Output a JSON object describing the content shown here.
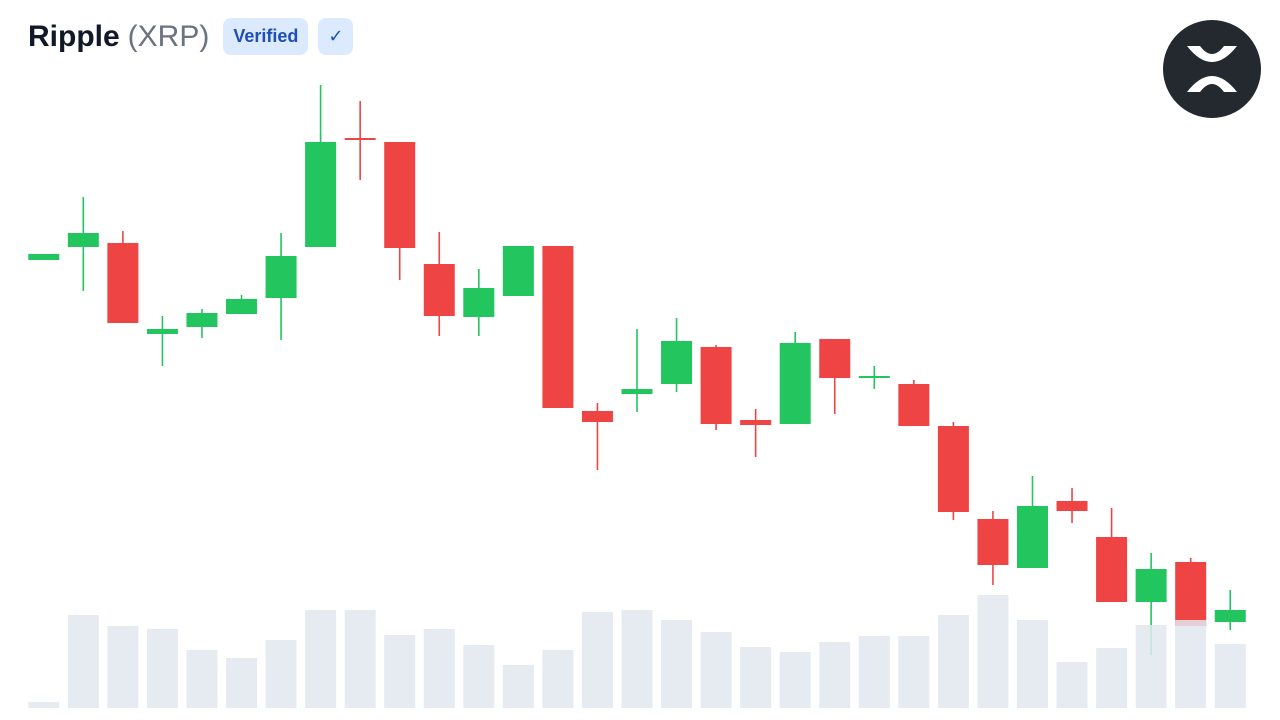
{
  "header": {
    "name": "Ripple",
    "ticker": "(XRP)",
    "badge": "Verified",
    "check": "✓"
  },
  "chart_data": {
    "type": "candlestick",
    "open": [
      46.0,
      47.3,
      47.7,
      38.6,
      39.3,
      40.6,
      42.2,
      47.3,
      58.2,
      57.8,
      45.6,
      40.3,
      42.4,
      47.4,
      30.9,
      32.6,
      33.6,
      37.3,
      30.0,
      29.6,
      38.1,
      34.2,
      33.6,
      29.4,
      20.1,
      15.2,
      21.9,
      18.3,
      11.8,
      15.8,
      9.8
    ],
    "high": [
      46.6,
      52.3,
      48.9,
      40.4,
      41.1,
      42.5,
      48.7,
      63.5,
      61.9,
      57.8,
      48.8,
      45.1,
      47.4,
      47.4,
      31.7,
      39.1,
      40.2,
      37.5,
      31.1,
      38.8,
      38.1,
      35.4,
      34.0,
      29.8,
      20.9,
      24.4,
      23.2,
      21.2,
      16.7,
      16.2,
      13.0
    ],
    "low": [
      46.0,
      42.9,
      39.7,
      35.4,
      38.2,
      40.6,
      38.0,
      47.3,
      54.0,
      44.0,
      38.4,
      38.4,
      42.4,
      31.2,
      25.0,
      30.8,
      32.8,
      29.0,
      26.3,
      29.6,
      30.6,
      33.1,
      29.4,
      20.0,
      13.5,
      15.2,
      19.7,
      11.8,
      6.5,
      9.4,
      9.0
    ],
    "close": [
      46.6,
      48.7,
      39.7,
      39.1,
      40.7,
      42.1,
      46.4,
      57.8,
      58.0,
      47.2,
      40.4,
      43.2,
      47.4,
      31.2,
      29.8,
      33.1,
      37.9,
      29.6,
      29.5,
      37.7,
      34.2,
      34.4,
      29.4,
      20.8,
      15.5,
      21.4,
      20.9,
      11.8,
      15.1,
      9.4,
      11.0
    ],
    "volume": [
      6,
      93,
      82,
      79,
      58,
      50,
      68,
      98,
      98,
      73,
      79,
      63,
      43,
      58,
      96,
      98,
      88,
      76,
      61,
      56,
      66,
      72,
      72,
      93,
      113,
      88,
      46,
      60,
      83,
      88,
      64
    ],
    "ylim": [
      0,
      72
    ],
    "volume_lim": [
      0,
      120
    ],
    "up_color": "#22c55e",
    "down_color": "#ef4444",
    "volume_color": "#e2e8f0"
  }
}
